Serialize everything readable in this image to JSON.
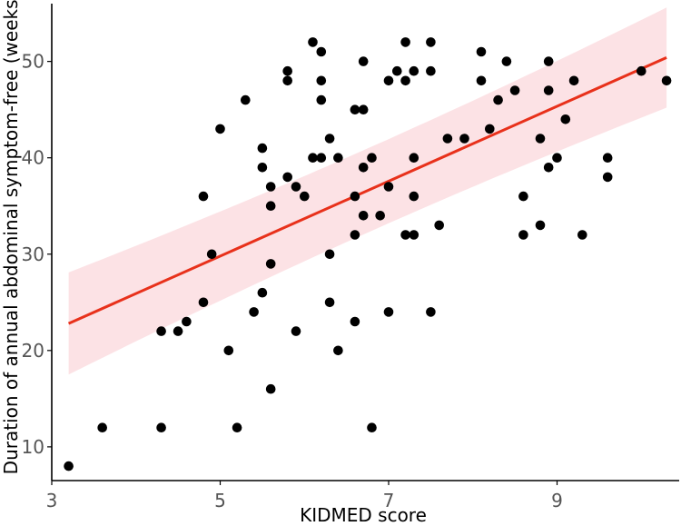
{
  "chart_data": {
    "type": "scatter",
    "title": "",
    "xlabel": "KIDMED score",
    "ylabel": "Duration of annual abdominal symptom-free (weeks)",
    "xlim": [
      3,
      10.45
    ],
    "ylim": [
      6.5,
      56
    ],
    "xticks": [
      "3",
      "5",
      "7",
      "9"
    ],
    "yticks": [
      "10",
      "20",
      "30",
      "40",
      "50"
    ],
    "grid": false,
    "colors": {
      "points": "#000000",
      "fit_line": "#e8311b",
      "ci_band": "#fcdde1",
      "axis": "#000000"
    },
    "points": [
      [
        3.2,
        8
      ],
      [
        3.6,
        12
      ],
      [
        4.3,
        12
      ],
      [
        4.3,
        22
      ],
      [
        4.5,
        22
      ],
      [
        4.6,
        23
      ],
      [
        4.8,
        25
      ],
      [
        4.8,
        36
      ],
      [
        4.9,
        30
      ],
      [
        5.0,
        43
      ],
      [
        5.1,
        20
      ],
      [
        5.2,
        12
      ],
      [
        5.3,
        46
      ],
      [
        5.4,
        24
      ],
      [
        5.5,
        26
      ],
      [
        5.5,
        39
      ],
      [
        5.5,
        41
      ],
      [
        5.6,
        37
      ],
      [
        5.6,
        35
      ],
      [
        5.6,
        29
      ],
      [
        5.6,
        16
      ],
      [
        5.8,
        49
      ],
      [
        5.8,
        48
      ],
      [
        5.8,
        38
      ],
      [
        5.9,
        37
      ],
      [
        5.9,
        22
      ],
      [
        6.0,
        36
      ],
      [
        6.1,
        52
      ],
      [
        6.1,
        40
      ],
      [
        6.2,
        51
      ],
      [
        6.2,
        48
      ],
      [
        6.2,
        46
      ],
      [
        6.2,
        40
      ],
      [
        6.3,
        42
      ],
      [
        6.3,
        30
      ],
      [
        6.3,
        25
      ],
      [
        6.4,
        40
      ],
      [
        6.4,
        20
      ],
      [
        6.6,
        45
      ],
      [
        6.6,
        36
      ],
      [
        6.6,
        32
      ],
      [
        6.6,
        23
      ],
      [
        6.7,
        50
      ],
      [
        6.7,
        45
      ],
      [
        6.7,
        39
      ],
      [
        6.7,
        34
      ],
      [
        6.8,
        40
      ],
      [
        6.8,
        12
      ],
      [
        6.9,
        34
      ],
      [
        7.0,
        48
      ],
      [
        7.0,
        37
      ],
      [
        7.0,
        24
      ],
      [
        7.1,
        49
      ],
      [
        7.2,
        52
      ],
      [
        7.2,
        48
      ],
      [
        7.2,
        32
      ],
      [
        7.3,
        49
      ],
      [
        7.3,
        40
      ],
      [
        7.3,
        36
      ],
      [
        7.3,
        32
      ],
      [
        7.5,
        52
      ],
      [
        7.5,
        49
      ],
      [
        7.5,
        24
      ],
      [
        7.6,
        33
      ],
      [
        7.7,
        42
      ],
      [
        7.9,
        42
      ],
      [
        8.1,
        51
      ],
      [
        8.1,
        48
      ],
      [
        8.2,
        43
      ],
      [
        8.3,
        46
      ],
      [
        8.4,
        50
      ],
      [
        8.5,
        47
      ],
      [
        8.6,
        36
      ],
      [
        8.6,
        32
      ],
      [
        8.8,
        42
      ],
      [
        8.8,
        33
      ],
      [
        8.9,
        50
      ],
      [
        8.9,
        47
      ],
      [
        8.9,
        39
      ],
      [
        9.0,
        40
      ],
      [
        9.1,
        44
      ],
      [
        9.2,
        48
      ],
      [
        9.3,
        32
      ],
      [
        9.6,
        40
      ],
      [
        9.6,
        38
      ],
      [
        10.0,
        49
      ],
      [
        10.3,
        48
      ]
    ],
    "fit_line": {
      "x": [
        3.2,
        10.3
      ],
      "y": [
        22.8,
        50.4
      ]
    },
    "ci_band": {
      "x": [
        3.2,
        10.3
      ],
      "lower": [
        17.5,
        45.3
      ],
      "upper": [
        28.2,
        55.6
      ],
      "center": [
        6.86,
        37.0
      ]
    }
  }
}
